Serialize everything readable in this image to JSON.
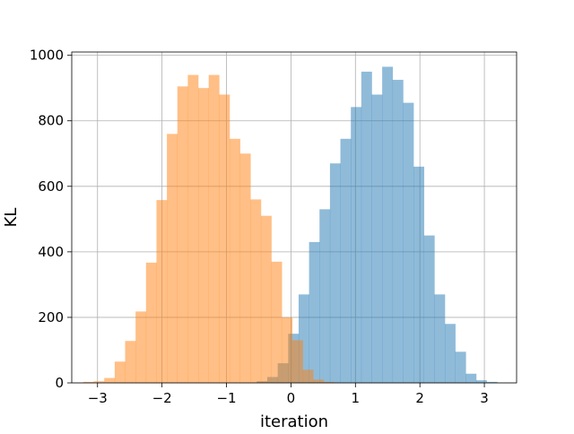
{
  "chart_data": {
    "type": "bar",
    "title": "",
    "xlabel": "iteration",
    "ylabel": "KL",
    "xlim": [
      -3.4,
      3.5
    ],
    "ylim": [
      0,
      1010
    ],
    "x_ticks": [
      -3,
      -2,
      -1,
      0,
      1,
      2,
      3
    ],
    "x_tick_labels": [
      "−3",
      "−2",
      "−1",
      "0",
      "1",
      "2",
      "3"
    ],
    "y_ticks": [
      0,
      200,
      400,
      600,
      800,
      1000
    ],
    "y_tick_labels": [
      "0",
      "200",
      "400",
      "600",
      "800",
      "1000"
    ],
    "grid": true,
    "legend": "none",
    "bar_width": 0.162,
    "series": [
      {
        "color": "#1f77b4",
        "opacity": 0.5,
        "bin_starts": [
          -0.53,
          -0.367,
          -0.205,
          -0.043,
          0.119,
          0.281,
          0.443,
          0.605,
          0.767,
          0.929,
          1.091,
          1.253,
          1.415,
          1.577,
          1.739,
          1.901,
          2.063,
          2.225,
          2.387,
          2.549,
          2.711,
          2.873,
          3.035
        ],
        "values": [
          5,
          18,
          60,
          150,
          270,
          430,
          530,
          670,
          745,
          842,
          950,
          880,
          965,
          925,
          855,
          660,
          450,
          270,
          180,
          95,
          28,
          8,
          3
        ]
      },
      {
        "color": "#ff7f0e",
        "opacity": 0.5,
        "bin_starts": [
          -3.22,
          -3.058,
          -2.896,
          -2.734,
          -2.572,
          -2.41,
          -2.248,
          -2.086,
          -1.924,
          -1.762,
          -1.6,
          -1.438,
          -1.276,
          -1.114,
          -0.952,
          -0.79,
          -0.628,
          -0.466,
          -0.304,
          -0.142,
          0.02,
          0.182,
          0.344,
          0.506
        ],
        "values": [
          3,
          5,
          15,
          65,
          128,
          218,
          367,
          558,
          760,
          905,
          940,
          900,
          940,
          880,
          745,
          700,
          560,
          510,
          370,
          200,
          130,
          40,
          10,
          3
        ]
      }
    ]
  }
}
